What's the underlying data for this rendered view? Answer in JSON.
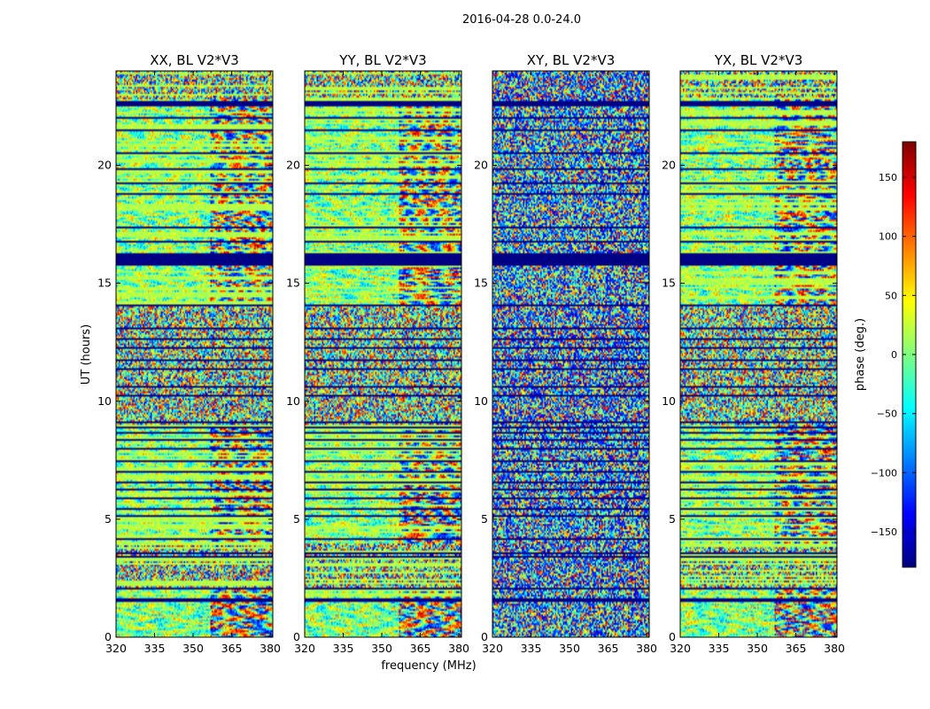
{
  "figure": {
    "suptitle": "2016-04-28 0.0-24.0",
    "xlabel": "frequency (MHz)",
    "ylabel": "UT (hours)",
    "colorbar_label": "phase (deg.)",
    "colormap": "jet",
    "colorbar_colors": [
      "#00007f",
      "#0000ff",
      "#007fff",
      "#00ffff",
      "#7fff7f",
      "#ffff00",
      "#ff7f00",
      "#ff0000",
      "#7f0000"
    ]
  },
  "chart_data": {
    "type": "heatmap",
    "panels": [
      {
        "title": "XX, BL V2*V3"
      },
      {
        "title": "YY, BL V2*V3"
      },
      {
        "title": "XY, BL V2*V3"
      },
      {
        "title": "YX, BL V2*V3"
      }
    ],
    "x": {
      "label": "frequency (MHz)",
      "range": [
        320,
        381
      ],
      "ticks": [
        320,
        335,
        350,
        365,
        380
      ]
    },
    "y": {
      "label": "UT (hours)",
      "range": [
        0,
        24
      ],
      "ticks": [
        0,
        5,
        10,
        15,
        20
      ]
    },
    "colorbar": {
      "label": "phase (deg.)",
      "range": [
        -180,
        180
      ],
      "ticks": [
        -150,
        -100,
        -50,
        0,
        50,
        100,
        150
      ]
    },
    "flagged_ut_bands": [
      [
        1.5,
        1.65
      ],
      [
        2.02,
        2.08
      ],
      [
        3.35,
        3.45
      ],
      [
        3.55,
        3.62
      ],
      [
        4.12,
        4.2
      ],
      [
        4.55,
        4.6
      ],
      [
        5.12,
        5.18
      ],
      [
        5.42,
        5.48
      ],
      [
        5.88,
        5.95
      ],
      [
        6.25,
        6.32
      ],
      [
        6.52,
        6.58
      ],
      [
        6.95,
        7.05
      ],
      [
        7.45,
        7.52
      ],
      [
        7.92,
        8.0
      ],
      [
        8.35,
        8.42
      ],
      [
        8.62,
        8.68
      ],
      [
        8.85,
        8.92
      ],
      [
        9.08,
        9.15
      ],
      [
        10.2,
        10.28
      ],
      [
        10.55,
        10.62
      ],
      [
        11.35,
        11.42
      ],
      [
        11.72,
        11.78
      ],
      [
        12.25,
        12.32
      ],
      [
        12.62,
        12.68
      ],
      [
        13.05,
        13.15
      ],
      [
        14.0,
        14.08
      ],
      [
        15.75,
        16.25
      ],
      [
        16.75,
        16.8
      ],
      [
        17.35,
        17.42
      ],
      [
        18.75,
        18.82
      ],
      [
        19.2,
        19.25
      ],
      [
        19.8,
        19.87
      ],
      [
        20.5,
        20.55
      ],
      [
        21.45,
        21.52
      ],
      [
        21.95,
        22.05
      ],
      [
        22.5,
        22.7
      ]
    ]
  }
}
